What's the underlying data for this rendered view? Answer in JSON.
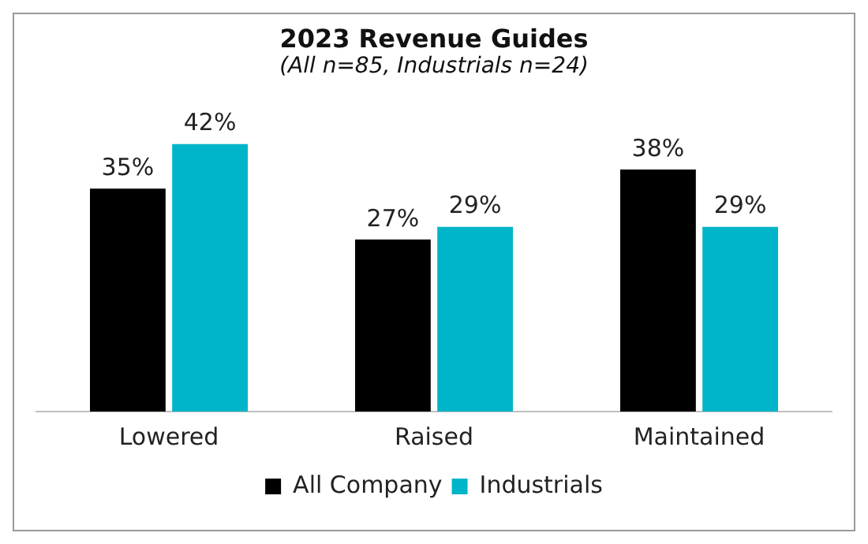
{
  "chart_data": {
    "type": "bar",
    "title": "2023 Revenue Guides",
    "subtitle": "(All n=85, Industrials n=24)",
    "categories": [
      "Lowered",
      "Raised",
      "Maintained"
    ],
    "series": [
      {
        "name": "All Company",
        "color": "#000000",
        "values": [
          35,
          27,
          38
        ],
        "value_labels": [
          "35%",
          "27%",
          "38%"
        ]
      },
      {
        "name": "Industrials",
        "color": "#00b5c9",
        "values": [
          42,
          29,
          29
        ],
        "value_labels": [
          "42%",
          "29%",
          "29%"
        ]
      }
    ],
    "legend": "bottom",
    "grid": false
  }
}
